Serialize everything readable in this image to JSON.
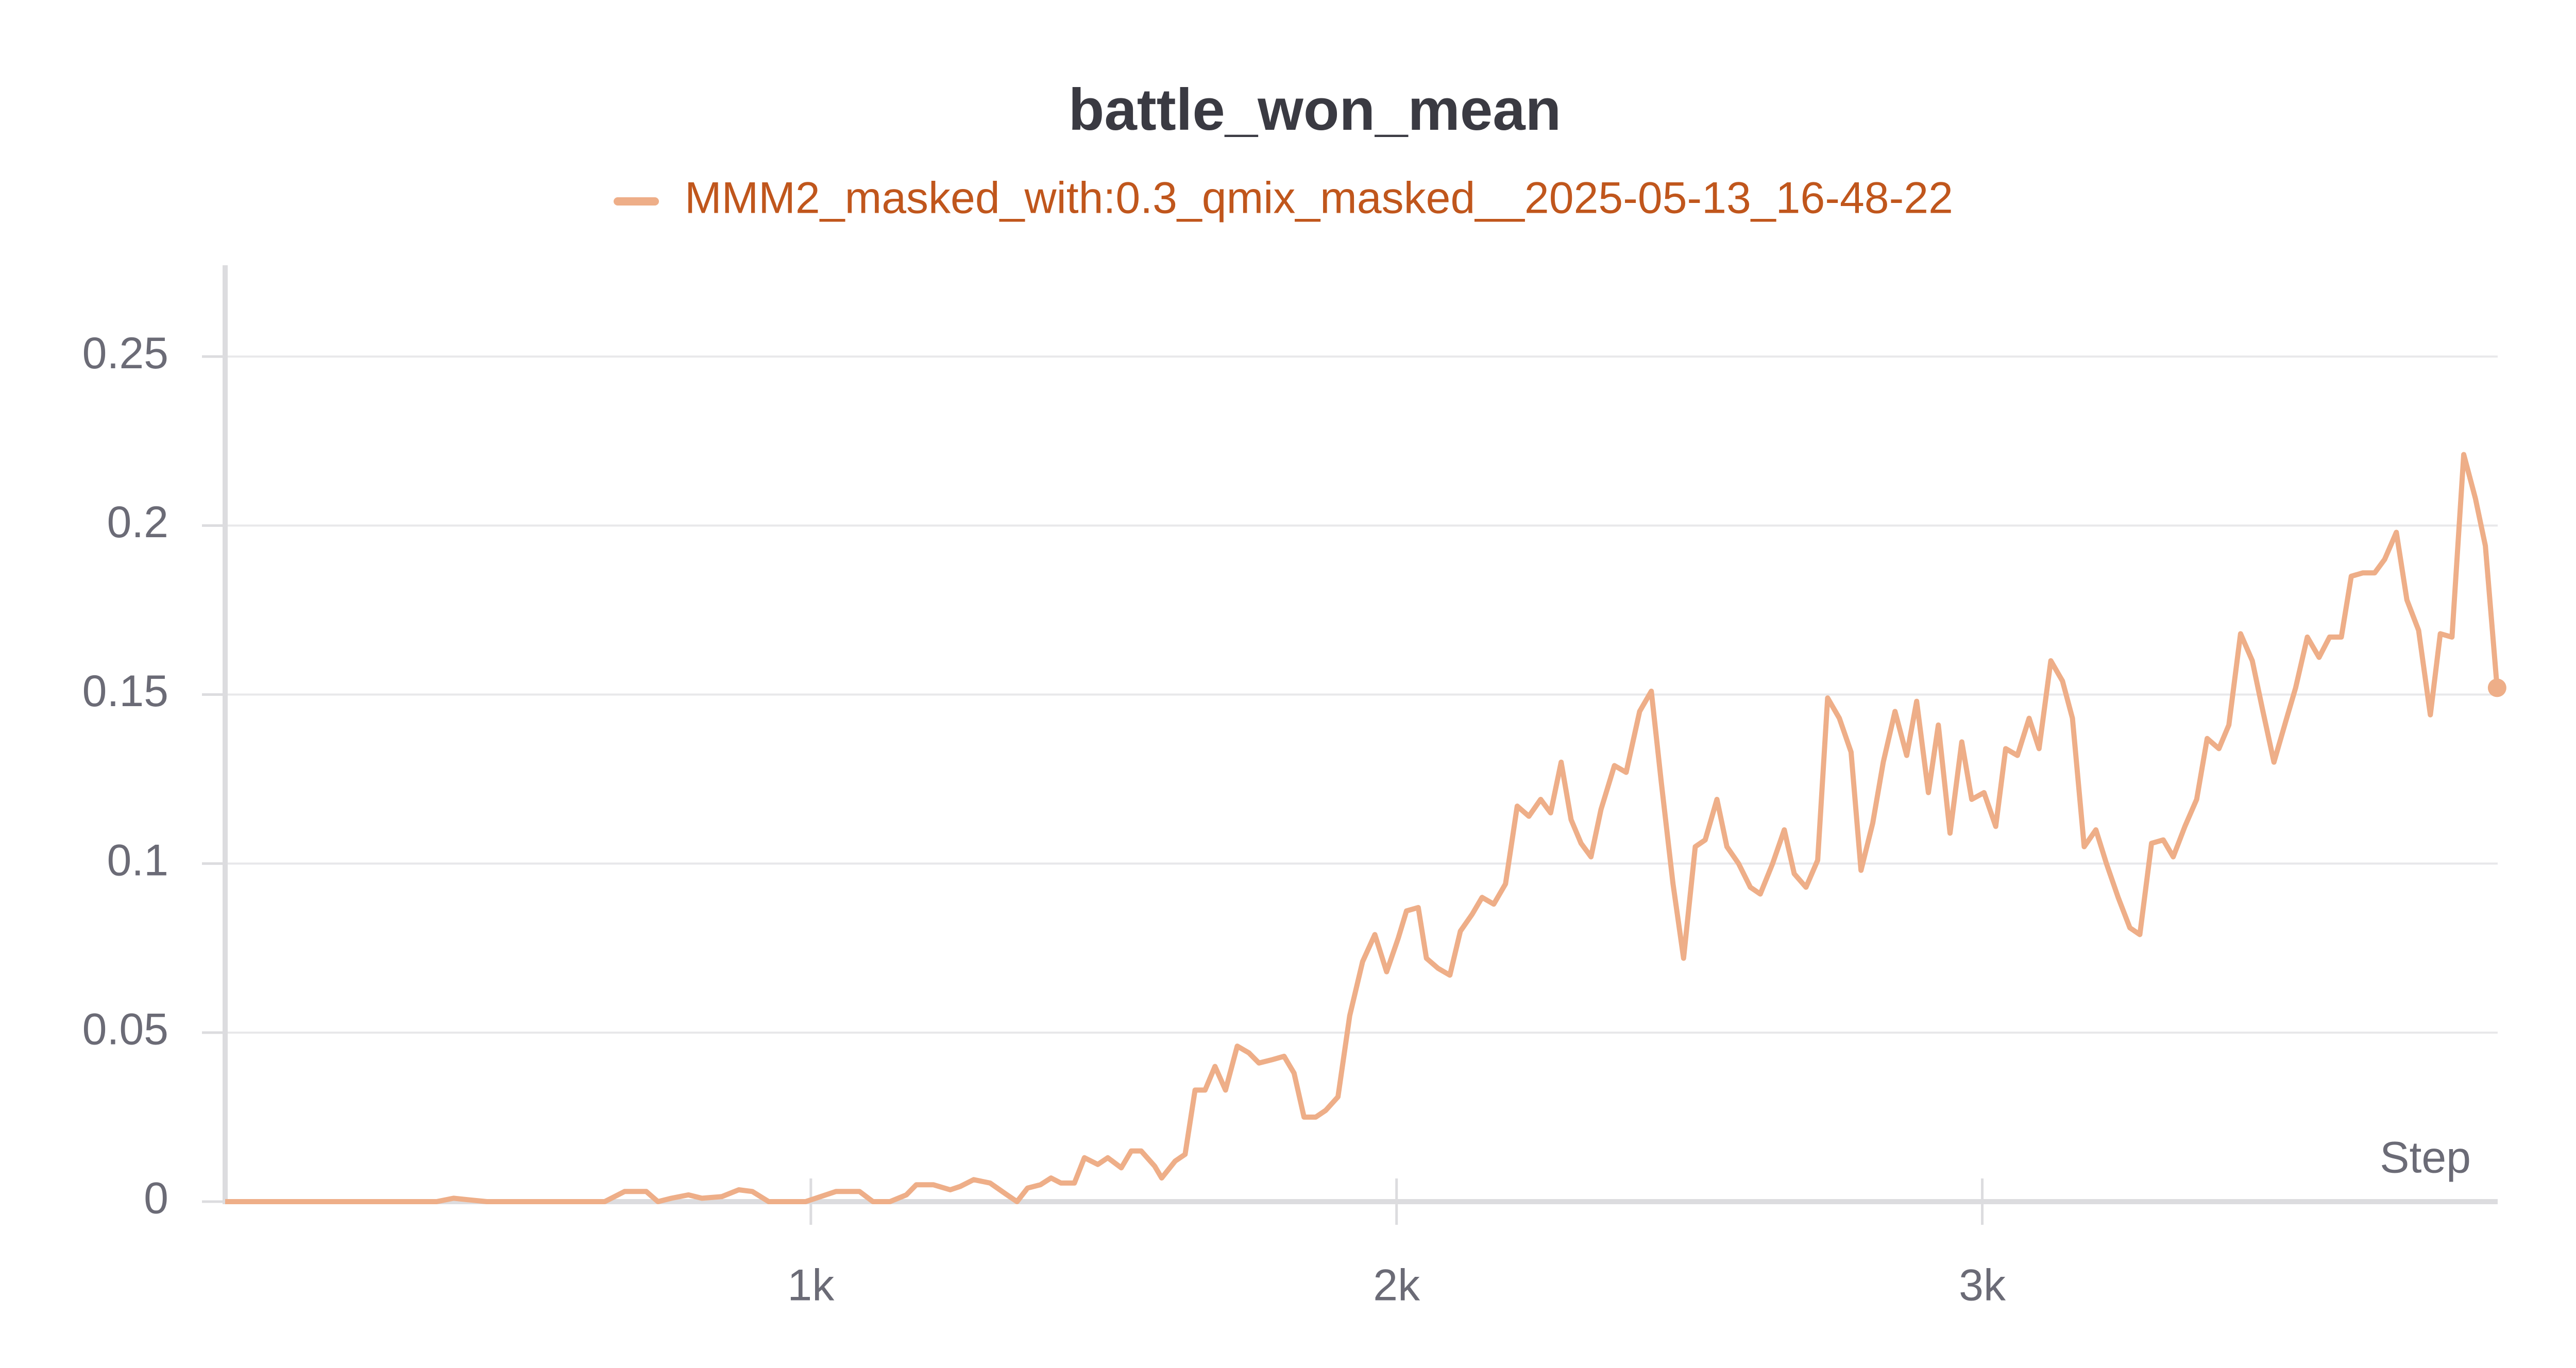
{
  "chart_data": {
    "type": "line",
    "title": "battle_won_mean",
    "x_label": "Step",
    "xlim": [
      0,
      3880
    ],
    "ylim": [
      0,
      0.277
    ],
    "xticks": [
      {
        "value": 1000,
        "label": "1k"
      },
      {
        "value": 2000,
        "label": "2k"
      },
      {
        "value": 3000,
        "label": "3k"
      }
    ],
    "yticks": [
      0,
      0.05,
      0.1,
      0.15,
      0.2,
      0.25
    ],
    "grid": true,
    "x": [
      0,
      361,
      390,
      418,
      447,
      648,
      682,
      719,
      739,
      762,
      791,
      814,
      848,
      877,
      900,
      928,
      991,
      1043,
      1083,
      1106,
      1135,
      1163,
      1180,
      1209,
      1238,
      1255,
      1278,
      1306,
      1335,
      1352,
      1370,
      1392,
      1410,
      1427,
      1450,
      1467,
      1490,
      1507,
      1530,
      1547,
      1564,
      1587,
      1599,
      1622,
      1639,
      1656,
      1673,
      1690,
      1708,
      1728,
      1748,
      1765,
      1788,
      1808,
      1825,
      1842,
      1862,
      1879,
      1900,
      1920,
      1942,
      1963,
      1983,
      2003,
      2017,
      2037,
      2051,
      2071,
      2091,
      2109,
      2129,
      2146,
      2166,
      2186,
      2206,
      2226,
      2246,
      2263,
      2281,
      2298,
      2315,
      2332,
      2349,
      2372,
      2392,
      2415,
      2435,
      2452,
      2472,
      2490,
      2510,
      2527,
      2547,
      2564,
      2584,
      2604,
      2621,
      2642,
      2662,
      2679,
      2699,
      2719,
      2736,
      2756,
      2776,
      2793,
      2813,
      2831,
      2851,
      2871,
      2888,
      2908,
      2925,
      2945,
      2965,
      2982,
      3003,
      3023,
      3040,
      3060,
      3080,
      3097,
      3117,
      3137,
      3154,
      3174,
      3194,
      3212,
      3232,
      3252,
      3269,
      3289,
      3309,
      3326,
      3346,
      3366,
      3384,
      3404,
      3421,
      3441,
      3461,
      3478,
      3498,
      3518,
      3535,
      3555,
      3575,
      3593,
      3613,
      3630,
      3650,
      3670,
      3687,
      3707,
      3725,
      3745,
      3765,
      3782,
      3802,
      3822,
      3842,
      3859,
      3879
    ],
    "series": [
      {
        "name": "MMM2_masked_with:0.3_qmix_masked__2025-05-13_16-48-22",
        "color": "#eeae88",
        "values": [
          0,
          0,
          0.001,
          0.0005,
          0,
          0,
          0.003,
          0.003,
          0,
          0.001,
          0.002,
          0.001,
          0.0015,
          0.0035,
          0.003,
          0,
          0,
          0.003,
          0.003,
          0,
          0,
          0.002,
          0.005,
          0.005,
          0.0035,
          0.0045,
          0.0065,
          0.0055,
          0.002,
          0,
          0.004,
          0.005,
          0.007,
          0.0055,
          0.0055,
          0.013,
          0.011,
          0.013,
          0.01,
          0.015,
          0.015,
          0.0105,
          0.007,
          0.012,
          0.014,
          0.033,
          0.033,
          0.04,
          0.033,
          0.046,
          0.044,
          0.041,
          0.042,
          0.043,
          0.038,
          0.025,
          0.025,
          0.027,
          0.031,
          0.055,
          0.071,
          0.079,
          0.068,
          0.078,
          0.086,
          0.087,
          0.072,
          0.069,
          0.067,
          0.08,
          0.085,
          0.09,
          0.088,
          0.094,
          0.117,
          0.114,
          0.119,
          0.115,
          0.13,
          0.113,
          0.106,
          0.102,
          0.116,
          0.129,
          0.127,
          0.145,
          0.151,
          0.124,
          0.094,
          0.072,
          0.105,
          0.107,
          0.119,
          0.105,
          0.1,
          0.093,
          0.091,
          0.1,
          0.11,
          0.097,
          0.093,
          0.101,
          0.149,
          0.143,
          0.133,
          0.098,
          0.112,
          0.13,
          0.145,
          0.132,
          0.148,
          0.121,
          0.141,
          0.109,
          0.136,
          0.119,
          0.121,
          0.111,
          0.134,
          0.132,
          0.143,
          0.134,
          0.16,
          0.154,
          0.143,
          0.105,
          0.11,
          0.1,
          0.09,
          0.081,
          0.079,
          0.106,
          0.107,
          0.102,
          0.111,
          0.119,
          0.137,
          0.134,
          0.141,
          0.168,
          0.16,
          0.146,
          0.13,
          0.142,
          0.152,
          0.167,
          0.161,
          0.167,
          0.167,
          0.185,
          0.186,
          0.186,
          0.19,
          0.198,
          0.178,
          0.169,
          0.144,
          0.168,
          0.167,
          0.221,
          0.208,
          0.194,
          0.152
        ]
      }
    ]
  }
}
